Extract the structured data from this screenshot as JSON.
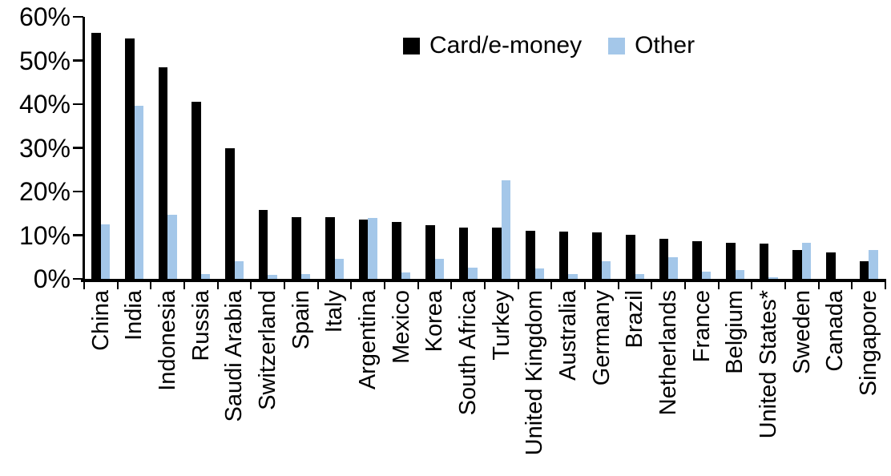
{
  "chart_data": {
    "type": "bar",
    "title": "",
    "xlabel": "",
    "ylabel": "",
    "ylim": [
      0,
      60
    ],
    "ytick_step": 10,
    "ytick_labels": [
      "0%",
      "10%",
      "20%",
      "30%",
      "40%",
      "50%",
      "60%"
    ],
    "grid": false,
    "legend_position": "top-center",
    "categories": [
      "China",
      "India",
      "Indonesia",
      "Russia",
      "Saudi Arabia",
      "Switzerland",
      "Spain",
      "Italy",
      "Argentina",
      "Mexico",
      "Korea",
      "South Africa",
      "Turkey",
      "United Kingdom",
      "Australia",
      "Germany",
      "Brazil",
      "Netherlands",
      "France",
      "Belgium",
      "United States*",
      "Sweden",
      "Canada",
      "Singapore"
    ],
    "series": [
      {
        "name": "Card/e-money",
        "color": "#000000",
        "values": [
          56.3,
          55.0,
          48.4,
          40.6,
          29.9,
          15.7,
          14.2,
          14.1,
          13.5,
          13.0,
          12.3,
          11.8,
          11.7,
          11.1,
          10.9,
          10.7,
          10.1,
          9.2,
          8.6,
          8.2,
          8.0,
          6.7,
          6.0,
          4.0
        ]
      },
      {
        "name": "Other",
        "color": "#A4C7E9",
        "values": [
          12.4,
          39.7,
          14.6,
          1.1,
          4.0,
          1.0,
          1.2,
          4.6,
          14.0,
          1.5,
          4.6,
          2.5,
          22.6,
          2.4,
          1.1,
          4.0,
          1.2,
          5.0,
          1.7,
          2.1,
          0.3,
          8.2,
          0,
          6.7
        ]
      }
    ]
  }
}
